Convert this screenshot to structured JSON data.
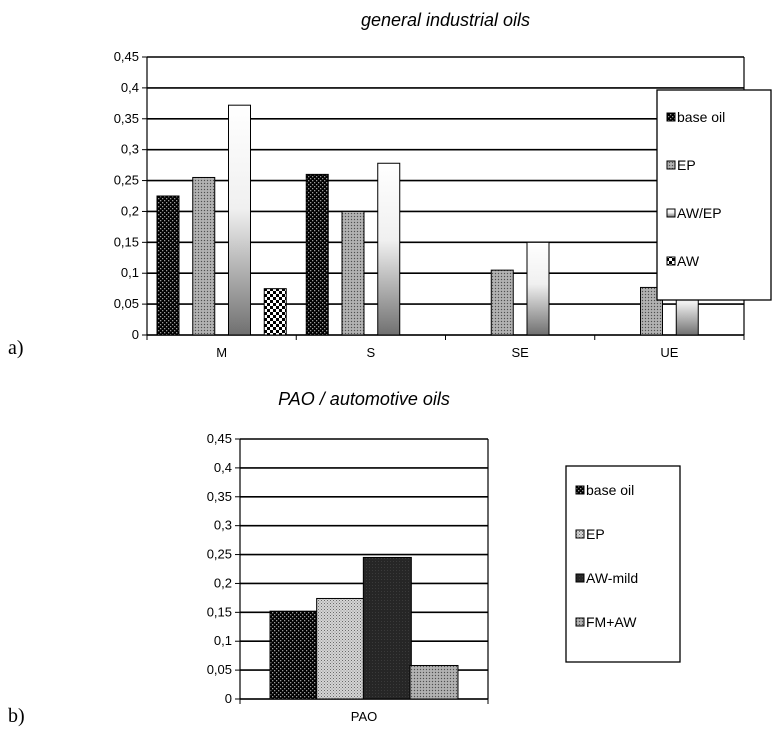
{
  "panel_labels": {
    "a": "a)",
    "b": "b)"
  },
  "chart_data": [
    {
      "type": "bar",
      "title": "general industrial oils",
      "xlabel": "",
      "ylabel": "",
      "categories": [
        "M",
        "S",
        "SE",
        "UE"
      ],
      "ylim": [
        0,
        0.45
      ],
      "yticks": [
        "0",
        "0,05",
        "0,1",
        "0,15",
        "0,2",
        "0,25",
        "0,3",
        "0,35",
        "0,4",
        "0,45"
      ],
      "grid": true,
      "legend_position": "right",
      "series": [
        {
          "name": "base oil",
          "pattern": "dark-dots",
          "values": [
            0.225,
            0.26,
            null,
            null
          ]
        },
        {
          "name": "EP",
          "pattern": "grey-dots",
          "values": [
            0.255,
            0.2,
            0.105,
            0.077
          ]
        },
        {
          "name": "AW/EP",
          "pattern": "white-grey-gradient",
          "values": [
            0.372,
            0.278,
            0.15,
            0.095
          ]
        },
        {
          "name": "AW",
          "pattern": "checker",
          "values": [
            0.075,
            null,
            null,
            null
          ]
        }
      ]
    },
    {
      "type": "bar",
      "title": "PAO / automotive oils",
      "xlabel": "",
      "ylabel": "",
      "categories": [
        "PAO"
      ],
      "ylim": [
        0,
        0.45
      ],
      "yticks": [
        "0",
        "0,05",
        "0,1",
        "0,15",
        "0,2",
        "0,25",
        "0,3",
        "0,35",
        "0,4",
        "0,45"
      ],
      "grid": true,
      "legend_position": "right",
      "series": [
        {
          "name": "base oil",
          "pattern": "dark-dots",
          "values": [
            0.152
          ]
        },
        {
          "name": "EP",
          "pattern": "light-dots",
          "values": [
            0.174
          ]
        },
        {
          "name": "AW-mild",
          "pattern": "dark-solid",
          "values": [
            0.245
          ]
        },
        {
          "name": "FM+AW",
          "pattern": "grey-dots",
          "values": [
            0.058
          ]
        }
      ]
    }
  ]
}
